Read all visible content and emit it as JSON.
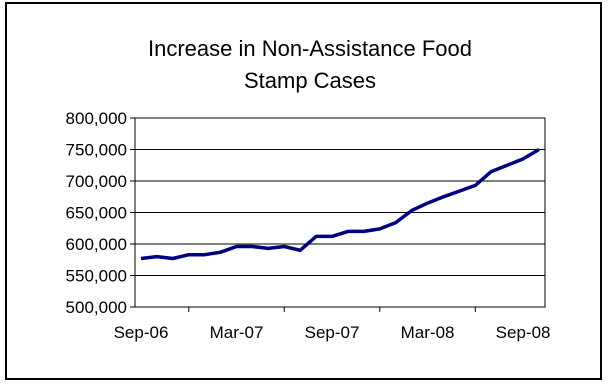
{
  "chart_data": {
    "type": "line",
    "title_lines": [
      "Increase in Non-Assistance Food",
      "Stamp Cases"
    ],
    "xlabel": "",
    "ylabel": "",
    "ylim": [
      500000,
      800000
    ],
    "y_ticks": [
      "800,000",
      "750,000",
      "700,000",
      "650,000",
      "600,000",
      "550,000",
      "500,000"
    ],
    "x_ticks": [
      "Sep-06",
      "Mar-07",
      "Sep-07",
      "Mar-08",
      "Sep-08"
    ],
    "x": [
      "Sep-06",
      "Oct-06",
      "Nov-06",
      "Dec-06",
      "Jan-07",
      "Feb-07",
      "Mar-07",
      "Apr-07",
      "May-07",
      "Jun-07",
      "Jul-07",
      "Aug-07",
      "Sep-07",
      "Oct-07",
      "Nov-07",
      "Dec-07",
      "Jan-08",
      "Feb-08",
      "Mar-08",
      "Apr-08",
      "May-08",
      "Jun-08",
      "Jul-08",
      "Aug-08",
      "Sep-08",
      "Oct-08"
    ],
    "series": [
      {
        "values": [
          577000,
          580000,
          577000,
          583000,
          583000,
          587000,
          596000,
          596000,
          593000,
          596000,
          590000,
          612000,
          612000,
          620000,
          620000,
          624000,
          634000,
          653000,
          665000,
          675000,
          684000,
          693000,
          715000,
          725000,
          735000,
          750000
        ]
      }
    ],
    "grid": "horizontal",
    "legend": "none",
    "colors": {
      "line": "#000080",
      "grid": "#000000",
      "plot_background": "#ffffff"
    }
  }
}
